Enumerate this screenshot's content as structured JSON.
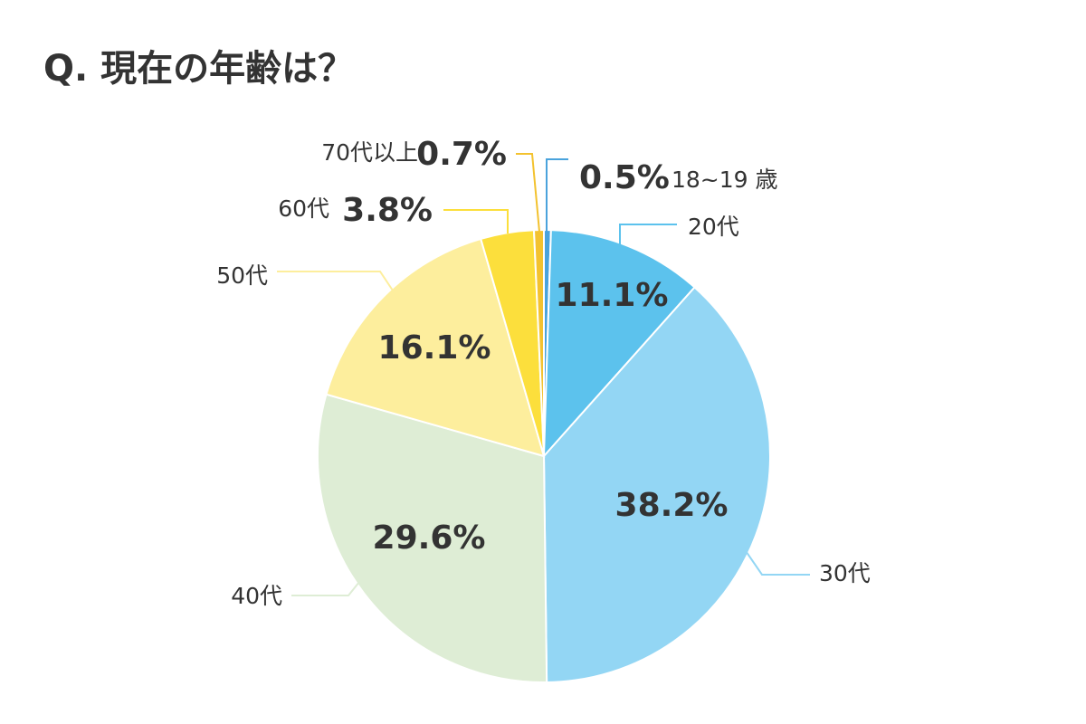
{
  "chart_data": {
    "type": "pie",
    "title": "Q. 現在の年齢は？",
    "categories": [
      "18~19 歳",
      "20代",
      "30代",
      "40代",
      "50代",
      "60代",
      "70代以上"
    ],
    "values": [
      0.5,
      11.1,
      38.2,
      29.6,
      16.1,
      3.8,
      0.7
    ],
    "value_labels": [
      "0.5%",
      "11.1%",
      "38.2%",
      "29.6%",
      "16.1%",
      "3.8%",
      "0.7%"
    ],
    "colors": [
      "#4aa3dc",
      "#5cc2ed",
      "#93d6f4",
      "#deedd5",
      "#fdee9d",
      "#fcdf3c",
      "#f3c22f"
    ]
  }
}
